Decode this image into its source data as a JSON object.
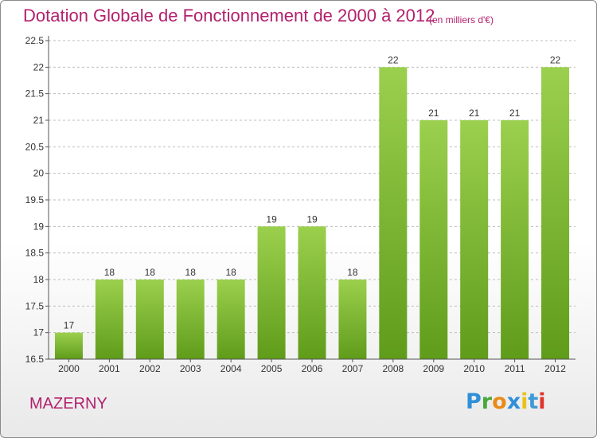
{
  "page": {
    "title": "Dotation Globale de Fonctionnement de 2000 à 2012",
    "unit_note": "(en milliers d'€)",
    "city": "MAZERNY",
    "logo": {
      "letters": [
        "P",
        "r",
        "o",
        "x",
        "i",
        "t",
        "i"
      ],
      "colors": [
        "#2f8fd8",
        "#4aa83a",
        "#e98b1a",
        "#2f8fd8",
        "#e8c21a",
        "#3f9ad6",
        "#e0332e"
      ]
    }
  },
  "colors": {
    "accent": "#b3206d",
    "bar_light": "#9bd04e",
    "bar_dark": "#5f9c1a",
    "grid": "#bdbdbd",
    "axis": "#555555"
  },
  "chart_data": {
    "type": "bar",
    "title": "Dotation Globale de Fonctionnement de 2000 à 2012",
    "subtitle": "(en milliers d'€)",
    "xlabel": "",
    "ylabel": "",
    "categories": [
      "2000",
      "2001",
      "2002",
      "2003",
      "2004",
      "2005",
      "2006",
      "2007",
      "2008",
      "2009",
      "2010",
      "2011",
      "2012"
    ],
    "values": [
      17,
      18,
      18,
      18,
      18,
      19,
      19,
      18,
      22,
      21,
      21,
      21,
      22
    ],
    "data_labels": [
      "17",
      "18",
      "18",
      "18",
      "18",
      "19",
      "19",
      "18",
      "22",
      "21",
      "21",
      "21",
      "22"
    ],
    "ylim": [
      16.5,
      22.5
    ],
    "yticks": [
      "16.5",
      "17",
      "17.5",
      "18",
      "18.5",
      "19",
      "19.5",
      "20",
      "20.5",
      "21",
      "21.5",
      "22",
      "22.5"
    ],
    "grid": true,
    "legend": "none"
  }
}
